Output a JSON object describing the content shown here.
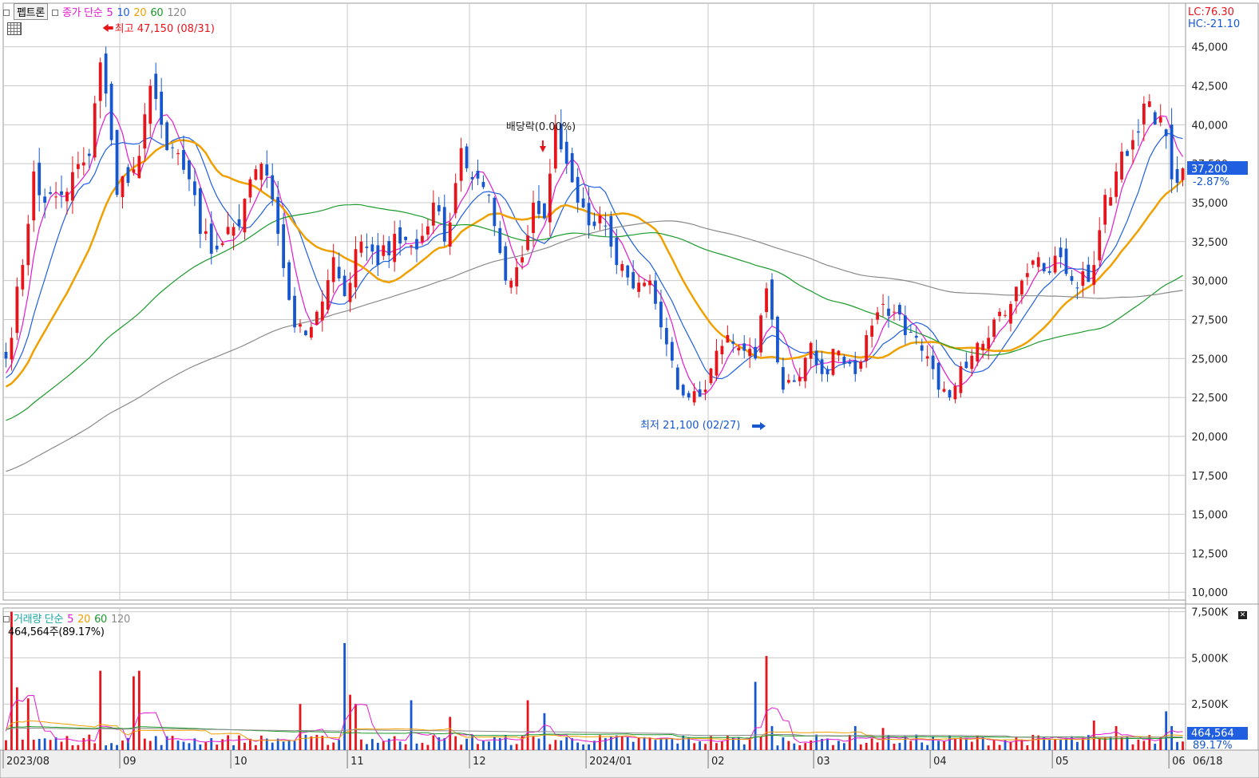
{
  "stock_name": "펩트론",
  "price_legend": {
    "label": "종가 단순",
    "ma_periods": [
      "5",
      "10",
      "20",
      "60",
      "120"
    ]
  },
  "volume_legend": {
    "label": "거래량 단순",
    "ma_periods": [
      "5",
      "20",
      "60",
      "120"
    ]
  },
  "volume_info": "464,564주(89.17%)",
  "lc_text": "LC:76.30",
  "hc_text": "HC:-21.10",
  "current_price_tag": "37,200",
  "current_change_tag": "-2.87%",
  "volume_tag": "464,564",
  "volume_pct_tag": "89.17%",
  "last_date_tag": "06/18",
  "annotations": {
    "high": "최고 47,150 (08/31)",
    "low": "최저 21,100 (02/27)",
    "dividend": "배당락(0.00%)"
  },
  "colors": {
    "up": "#e8141b",
    "down": "#1657d0",
    "ma5": "#e31ad0",
    "ma10": "#1f5fe0",
    "ma20": "#f0a000",
    "ma60": "#1a9a2a",
    "ma120": "#8a8a8a",
    "grid": "#c9c9c9"
  },
  "chart_data": [
    {
      "type": "candlestick",
      "x_labels": [
        "2023/08",
        "09",
        "10",
        "11",
        "12",
        "2024/01",
        "02",
        "03",
        "04",
        "05",
        "06"
      ],
      "y_ticks": [
        10000,
        12500,
        15000,
        17500,
        20000,
        22500,
        25000,
        27500,
        30000,
        32500,
        35000,
        37500,
        40000,
        42500,
        45000
      ],
      "ylim": [
        9500,
        47800
      ],
      "n_days": 213,
      "keypoints": [
        {
          "day": 0,
          "price": 25000
        },
        {
          "day": 3,
          "price": 31000
        },
        {
          "day": 5,
          "price": 37000
        },
        {
          "day": 7,
          "price": 35000
        },
        {
          "day": 10,
          "price": 35500
        },
        {
          "day": 15,
          "price": 38000
        },
        {
          "day": 17,
          "price": 44000
        },
        {
          "day": 18,
          "price": 42000
        },
        {
          "day": 20,
          "price": 35500
        },
        {
          "day": 24,
          "price": 38000
        },
        {
          "day": 26,
          "price": 42500
        },
        {
          "day": 28,
          "price": 40000
        },
        {
          "day": 30,
          "price": 38500
        },
        {
          "day": 33,
          "price": 36500
        },
        {
          "day": 35,
          "price": 33000
        },
        {
          "day": 38,
          "price": 32000
        },
        {
          "day": 42,
          "price": 33500
        },
        {
          "day": 44,
          "price": 36500
        },
        {
          "day": 46,
          "price": 37500
        },
        {
          "day": 49,
          "price": 33000
        },
        {
          "day": 52,
          "price": 27000
        },
        {
          "day": 54,
          "price": 26500
        },
        {
          "day": 56,
          "price": 28000
        },
        {
          "day": 59,
          "price": 31500
        },
        {
          "day": 61,
          "price": 29000
        },
        {
          "day": 64,
          "price": 32500
        },
        {
          "day": 67,
          "price": 31000
        },
        {
          "day": 70,
          "price": 33000
        },
        {
          "day": 74,
          "price": 32000
        },
        {
          "day": 77,
          "price": 35000
        },
        {
          "day": 79,
          "price": 32500
        },
        {
          "day": 82,
          "price": 38500
        },
        {
          "day": 84,
          "price": 36500
        },
        {
          "day": 86,
          "price": 36000
        },
        {
          "day": 88,
          "price": 33500
        },
        {
          "day": 90,
          "price": 30000
        },
        {
          "day": 93,
          "price": 31500
        },
        {
          "day": 95,
          "price": 35000
        },
        {
          "day": 97,
          "price": 34000
        },
        {
          "day": 99,
          "price": 40000
        },
        {
          "day": 101,
          "price": 37500
        },
        {
          "day": 103,
          "price": 35000
        },
        {
          "day": 106,
          "price": 33500
        },
        {
          "day": 108,
          "price": 33500
        },
        {
          "day": 110,
          "price": 31000
        },
        {
          "day": 113,
          "price": 29500
        },
        {
          "day": 116,
          "price": 30000
        },
        {
          "day": 118,
          "price": 27000
        },
        {
          "day": 121,
          "price": 23000
        },
        {
          "day": 123,
          "price": 22500
        },
        {
          "day": 126,
          "price": 23000
        },
        {
          "day": 128,
          "price": 25500
        },
        {
          "day": 130,
          "price": 26500
        },
        {
          "day": 133,
          "price": 25500
        },
        {
          "day": 135,
          "price": 25000
        },
        {
          "day": 137,
          "price": 29500
        },
        {
          "day": 138,
          "price": 27500
        },
        {
          "day": 140,
          "price": 23000
        },
        {
          "day": 142,
          "price": 23500
        },
        {
          "day": 145,
          "price": 26000
        },
        {
          "day": 147,
          "price": 24000
        },
        {
          "day": 150,
          "price": 25500
        },
        {
          "day": 153,
          "price": 24000
        },
        {
          "day": 155,
          "price": 26500
        },
        {
          "day": 158,
          "price": 28500
        },
        {
          "day": 160,
          "price": 28000
        },
        {
          "day": 162,
          "price": 26500
        },
        {
          "day": 165,
          "price": 25500
        },
        {
          "day": 168,
          "price": 23000
        },
        {
          "day": 170,
          "price": 22500
        },
        {
          "day": 172,
          "price": 24500
        },
        {
          "day": 175,
          "price": 26000
        },
        {
          "day": 178,
          "price": 27500
        },
        {
          "day": 181,
          "price": 28500
        },
        {
          "day": 183,
          "price": 30000
        },
        {
          "day": 186,
          "price": 31500
        },
        {
          "day": 188,
          "price": 30500
        },
        {
          "day": 190,
          "price": 31500
        },
        {
          "day": 193,
          "price": 29500
        },
        {
          "day": 196,
          "price": 31000
        },
        {
          "day": 198,
          "price": 35500
        },
        {
          "day": 200,
          "price": 37000
        },
        {
          "day": 202,
          "price": 38000
        },
        {
          "day": 204,
          "price": 39500
        },
        {
          "day": 206,
          "price": 41500
        },
        {
          "day": 208,
          "price": 40500
        },
        {
          "day": 210,
          "price": 36500
        },
        {
          "day": 212,
          "price": 37200
        }
      ],
      "moving_averages": [
        "5",
        "10",
        "20",
        "60",
        "120"
      ]
    },
    {
      "type": "bar",
      "title": "거래량",
      "y_ticks": [
        2500,
        5000,
        7500
      ],
      "ylim": [
        0,
        7700
      ],
      "unit": "K",
      "spikes": [
        {
          "day": 1,
          "value": 7500
        },
        {
          "day": 2,
          "value": 3400
        },
        {
          "day": 4,
          "value": 2800
        },
        {
          "day": 17,
          "value": 4300
        },
        {
          "day": 23,
          "value": 4000
        },
        {
          "day": 24,
          "value": 4300
        },
        {
          "day": 53,
          "value": 2500
        },
        {
          "day": 61,
          "value": 5800
        },
        {
          "day": 62,
          "value": 3000
        },
        {
          "day": 63,
          "value": 2500
        },
        {
          "day": 73,
          "value": 2700
        },
        {
          "day": 80,
          "value": 1800
        },
        {
          "day": 94,
          "value": 2700
        },
        {
          "day": 97,
          "value": 2000
        },
        {
          "day": 135,
          "value": 3700
        },
        {
          "day": 137,
          "value": 5100
        },
        {
          "day": 138,
          "value": 1300
        },
        {
          "day": 153,
          "value": 1300
        },
        {
          "day": 158,
          "value": 1200
        },
        {
          "day": 196,
          "value": 1600
        },
        {
          "day": 200,
          "value": 1300
        },
        {
          "day": 209,
          "value": 2100
        },
        {
          "day": 210,
          "value": 1300
        },
        {
          "day": 212,
          "value": 464.564
        }
      ]
    }
  ]
}
